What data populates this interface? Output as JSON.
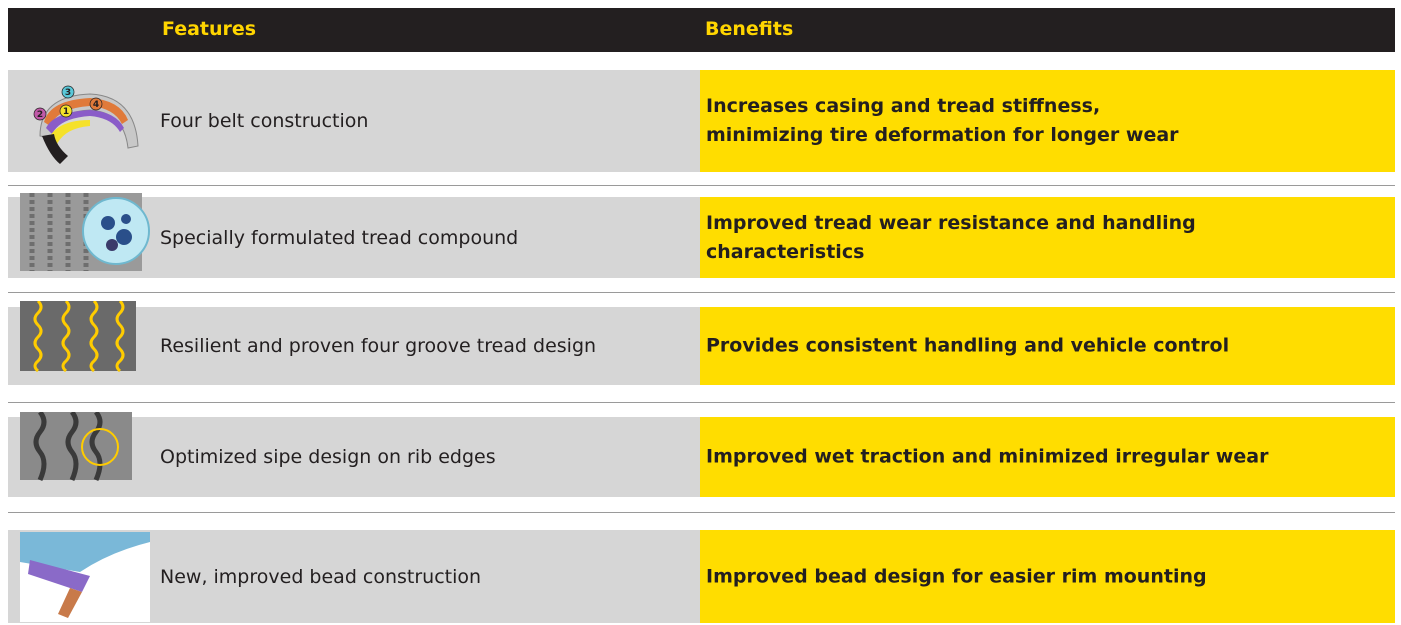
{
  "header": {
    "features": "Features",
    "benefits": "Benefits"
  },
  "rows": [
    {
      "feature": "Four belt construction",
      "benefit_lines": [
        "Increases casing and tread stiffness,",
        "minimizing tire deformation for longer wear"
      ],
      "icon_labels": [
        "1",
        "2",
        "3",
        "4"
      ]
    },
    {
      "feature": "Specially formulated tread compound",
      "benefit_lines": [
        "Improved tread wear resistance and handling",
        "characteristics"
      ]
    },
    {
      "feature": "Resilient and proven four groove tread design",
      "benefit_lines": [
        "Provides consistent handling and vehicle control"
      ]
    },
    {
      "feature": "Optimized sipe design on rib edges",
      "benefit_lines": [
        "Improved wet traction and minimized irregular wear"
      ]
    },
    {
      "feature": "New, improved bead construction",
      "benefit_lines": [
        "Improved bead design for easier rim mounting"
      ]
    }
  ]
}
